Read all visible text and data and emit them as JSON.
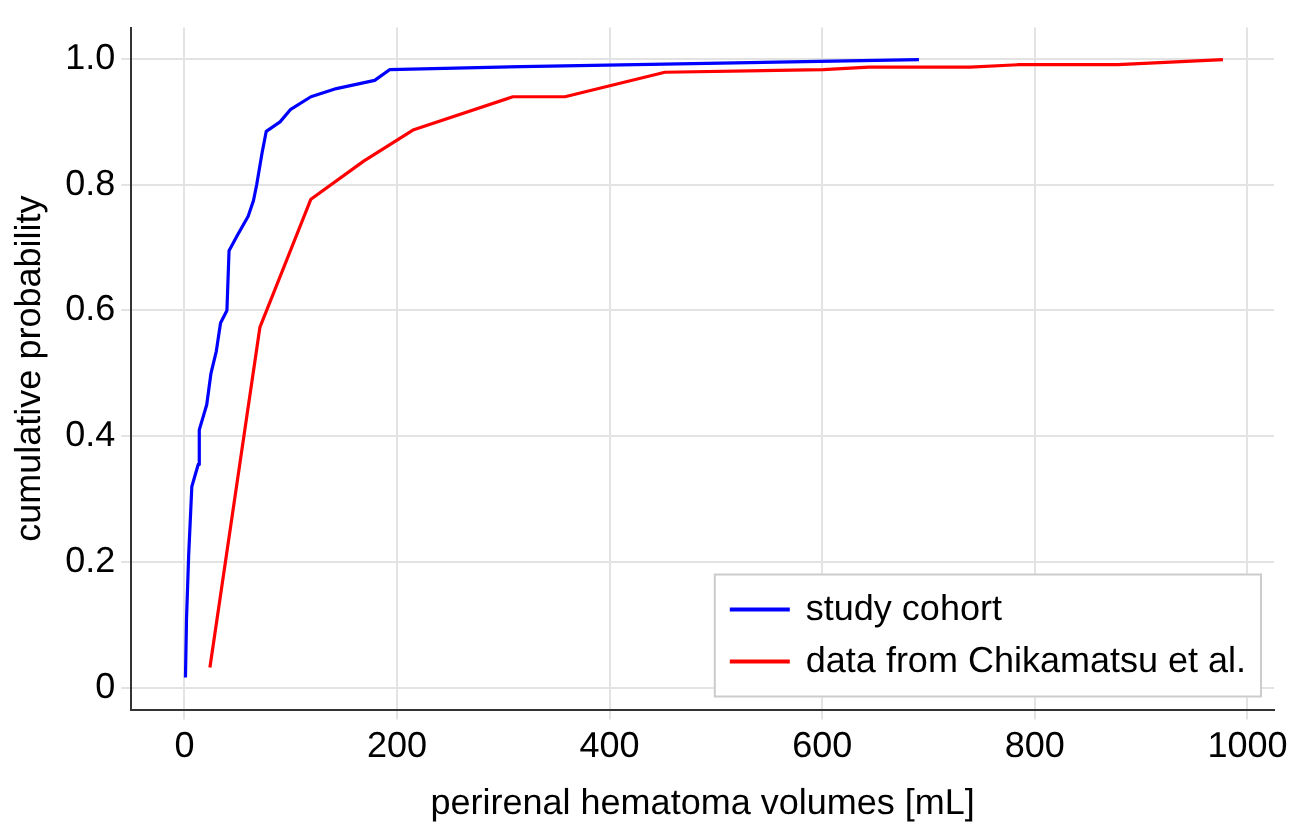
{
  "chart_data": {
    "type": "line",
    "xlabel": "perirenal hematoma volumes [mL]",
    "ylabel": "cumulative probability",
    "xlim": [
      -50,
      1025
    ],
    "xticks": [
      0,
      200,
      400,
      600,
      800,
      1000
    ],
    "ylim": [
      -0.035,
      1.05
    ],
    "yticks": [
      0,
      0.2,
      0.4,
      0.6,
      0.8,
      {
        "value": 1,
        "label": "1.0"
      }
    ],
    "grid": true,
    "legend": "bottom right",
    "marker": "none",
    "line_style": "solid",
    "series": [
      {
        "name": "study cohort",
        "color": "#0000ff",
        "x": [
          1,
          2,
          4,
          7,
          13,
          14,
          21,
          25,
          30,
          34,
          40,
          42,
          50,
          60,
          65,
          68,
          73,
          77,
          90,
          100,
          119,
          143,
          179,
          193,
          317,
          691
        ],
        "values": [
          0.016,
          0.11,
          0.21,
          0.32,
          0.355,
          0.41,
          0.45,
          0.5,
          0.535,
          0.58,
          0.6,
          0.695,
          0.72,
          0.75,
          0.775,
          0.8,
          0.85,
          0.885,
          0.9,
          0.92,
          0.94,
          0.953,
          0.966,
          0.983,
          0.988,
          0.999
        ]
      },
      {
        "name": "data from Chikamatsu et al.",
        "color": "#ff0000",
        "x": [
          24,
          71,
          119,
          169,
          215,
          309,
          358,
          452,
          601,
          644,
          739,
          785,
          878,
          977
        ],
        "values": [
          0.032,
          0.573,
          0.777,
          0.838,
          0.887,
          0.94,
          0.94,
          0.979,
          0.983,
          0.987,
          0.987,
          0.991,
          0.991,
          0.999
        ]
      }
    ]
  }
}
